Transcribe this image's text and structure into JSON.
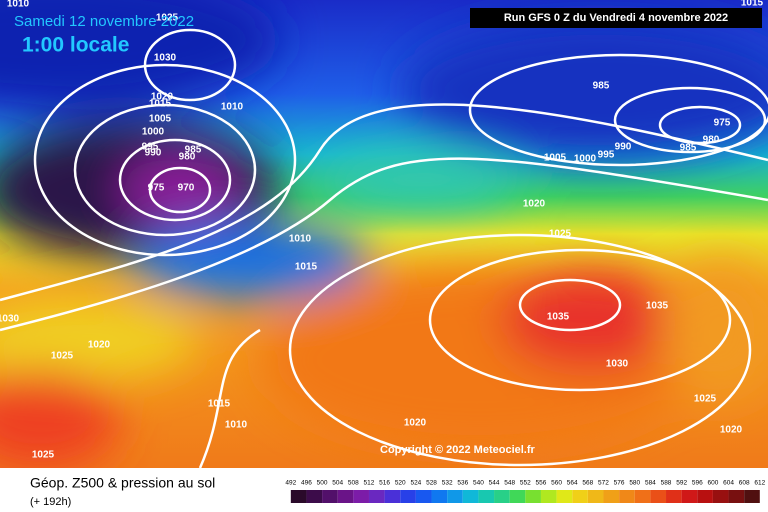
{
  "header": {
    "date": "Samedi 12 novembre 2022",
    "time": "1:00 locale",
    "run": "Run GFS 0 Z du Vendredi 4 novembre 2022"
  },
  "isobar_labels": [
    "1010",
    "1025",
    "1030",
    "1020",
    "1015",
    "1010",
    "1005",
    "1000",
    "995",
    "990",
    "985",
    "980",
    "975",
    "970",
    "1010",
    "1015",
    "1030",
    "1025",
    "1020",
    "1015",
    "1010",
    "1025",
    "1020",
    "985",
    "1005",
    "1000",
    "995",
    "990",
    "985",
    "980",
    "975",
    "1020",
    "1025",
    "1035",
    "1035",
    "1030",
    "1025",
    "1020",
    "1015"
  ],
  "copyright": "Copyright © 2022 Meteociel.fr",
  "footer": {
    "title": "Géop. Z500 & pression au sol",
    "lead": "(+ 192h)"
  },
  "scale": [
    492,
    496,
    500,
    504,
    508,
    512,
    516,
    520,
    524,
    528,
    532,
    536,
    540,
    544,
    548,
    552,
    556,
    560,
    564,
    568,
    572,
    576,
    580,
    584,
    588,
    592,
    596,
    600,
    604,
    608,
    612
  ]
}
